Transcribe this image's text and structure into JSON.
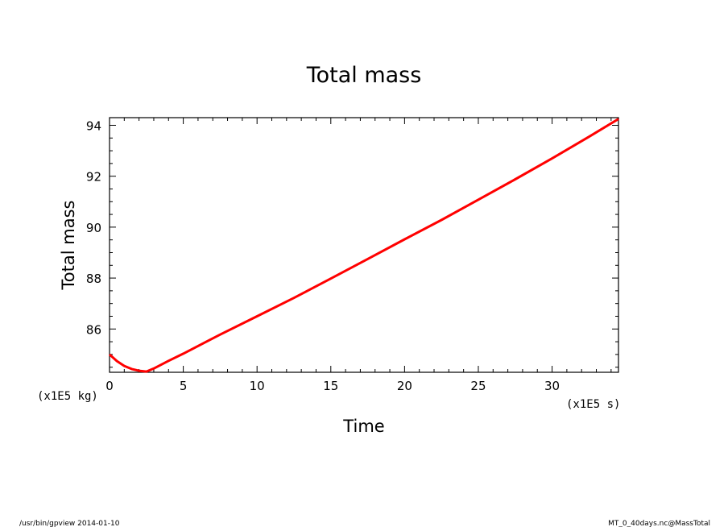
{
  "chart_data": {
    "type": "line",
    "title": "Total mass",
    "xlabel": "Time",
    "ylabel": "Total mass",
    "x_unit": "(x1E5 s)",
    "y_unit": "(x1E5 kg)",
    "xlim": [
      0,
      34.5
    ],
    "ylim": [
      84.3,
      94.3
    ],
    "x_ticks": [
      0,
      5,
      10,
      15,
      20,
      25,
      30
    ],
    "y_ticks": [
      86,
      88,
      90,
      92,
      94
    ],
    "grid": false,
    "legend": "none",
    "series": [
      {
        "color": "#ff0000",
        "x": [
          0,
          0.5,
          1.0,
          1.5,
          2.0,
          2.5,
          3.0,
          4.0,
          5.0,
          7.5,
          10,
          12.5,
          15,
          17.5,
          20,
          22.5,
          25,
          27.5,
          30,
          32.5,
          34.5
        ],
        "y": [
          85.0,
          84.74,
          84.55,
          84.43,
          84.36,
          84.33,
          84.45,
          84.75,
          85.03,
          85.78,
          86.5,
          87.22,
          87.98,
          88.75,
          89.52,
          90.28,
          91.08,
          91.88,
          92.7,
          93.55,
          94.25
        ]
      }
    ]
  },
  "footer": {
    "left": "/usr/bin/gpview   2014-01-10",
    "right": "MT_0_40days.nc@MassTotal"
  }
}
